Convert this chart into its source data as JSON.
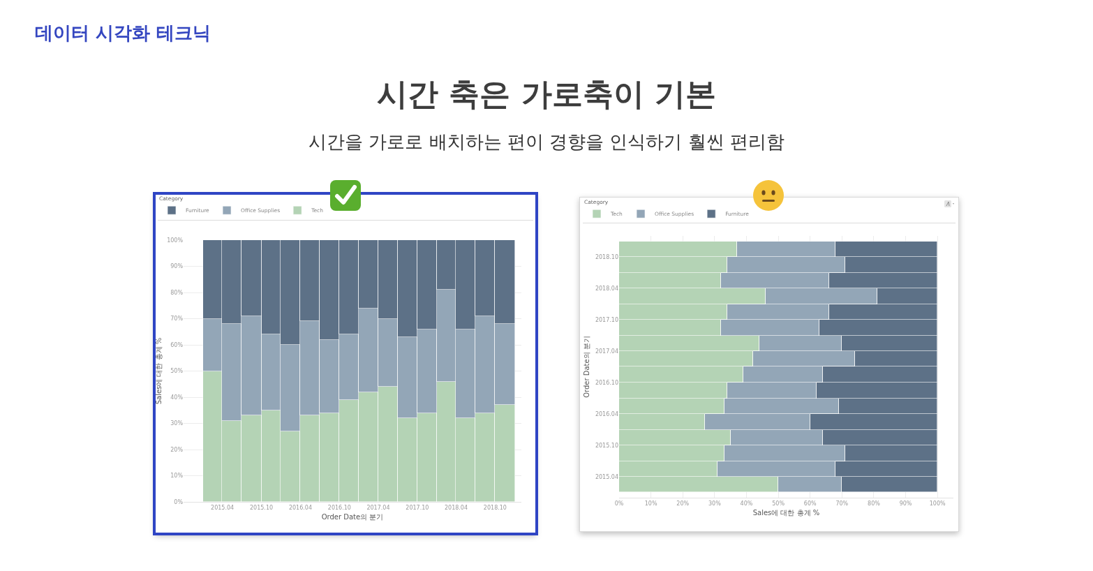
{
  "chart_data": [
    {
      "type": "bar",
      "title": "시간 축은 가로축이 기본",
      "subtitle": "시간을 가로로 배치하는 편이 경향을 인식하기 훨씬 편리함",
      "annotations": [
        "데이터 시각화 테크닉"
      ],
      "xlabel": "Order Date의 분기",
      "ylabel": "Sales에 대한 총계 %",
      "legend_title": "Category",
      "legend": "top left",
      "stacked": true,
      "grid": "y",
      "x": [
        "2015-02-15",
        "2015-05-16",
        "2015-08-16",
        "2015-11-16",
        "2016-02-15",
        "2016-05-16",
        "2016-08-16",
        "2016-11-16",
        "2017-02-15",
        "2017-05-16",
        "2017-08-16",
        "2017-11-16",
        "2018-02-15",
        "2018-05-16",
        "2018-08-16",
        "2018-11-16"
      ],
      "series": [
        {
          "name": "Tech",
          "color": "#b4d3b5",
          "values": [
            50,
            31,
            33,
            35,
            27,
            33,
            34,
            39,
            42,
            44,
            32,
            34,
            46,
            32,
            34,
            37
          ]
        },
        {
          "name": "Office Supplies",
          "color": "#93a6b7",
          "values": [
            20,
            37,
            38,
            29,
            33,
            36,
            28,
            25,
            32,
            26,
            31,
            32,
            35,
            34,
            37,
            31
          ]
        },
        {
          "name": "Furniture",
          "color": "#5d7187",
          "values": [
            30,
            32,
            29,
            36,
            40,
            31,
            38,
            36,
            26,
            30,
            37,
            34,
            19,
            34,
            29,
            32
          ]
        }
      ],
      "xlim": [
        "2014-10",
        "2019-02"
      ],
      "xticks": [
        {
          "value": "2015-04",
          "label": "2015.04"
        },
        {
          "value": "2015-10",
          "label": "2015.10"
        },
        {
          "value": "2016-04",
          "label": "2016.04"
        },
        {
          "value": "2016-10",
          "label": "2016.10"
        },
        {
          "value": "2017-04",
          "label": "2017.04"
        },
        {
          "value": "2017-10",
          "label": "2017.10"
        },
        {
          "value": "2018-04",
          "label": "2018.04"
        },
        {
          "value": "2018-10",
          "label": "2018.10"
        }
      ],
      "ylim": [
        0,
        100
      ],
      "yticks": [
        {
          "value": 0,
          "label": "0%"
        },
        {
          "value": 10,
          "label": "10%"
        },
        {
          "value": 20,
          "label": "20%"
        },
        {
          "value": 30,
          "label": "30%"
        },
        {
          "value": 40,
          "label": "40%"
        },
        {
          "value": 50,
          "label": "50%"
        },
        {
          "value": 60,
          "label": "60%"
        },
        {
          "value": 70,
          "label": "70%"
        },
        {
          "value": 80,
          "label": "80%"
        },
        {
          "value": 90,
          "label": "90%"
        },
        {
          "value": 100,
          "label": "100%"
        }
      ]
    },
    {
      "type": "bar",
      "orientation": "horizontal",
      "xlabel": "Sales에 대한 총계 %",
      "ylabel": "Order Date의 분기",
      "legend_title": "Category",
      "legend": "top left",
      "stacked": true,
      "grid": "x",
      "x": [
        "2015-02-15",
        "2015-05-16",
        "2015-08-16",
        "2015-11-16",
        "2016-02-15",
        "2016-05-16",
        "2016-08-16",
        "2016-11-16",
        "2017-02-15",
        "2017-05-16",
        "2017-08-16",
        "2017-11-16",
        "2018-02-15",
        "2018-05-16",
        "2018-08-16",
        "2018-11-16"
      ],
      "series": [
        {
          "name": "Tech",
          "color": "#b4d3b5",
          "values": [
            50,
            31,
            33,
            35,
            27,
            33,
            34,
            39,
            42,
            44,
            32,
            34,
            46,
            32,
            34,
            37
          ]
        },
        {
          "name": "Office Supplies",
          "color": "#93a6b7",
          "values": [
            20,
            37,
            38,
            29,
            33,
            36,
            28,
            25,
            32,
            26,
            31,
            32,
            35,
            34,
            37,
            31
          ]
        },
        {
          "name": "Furniture",
          "color": "#5d7187",
          "values": [
            30,
            32,
            29,
            36,
            40,
            31,
            38,
            36,
            26,
            30,
            37,
            34,
            19,
            34,
            29,
            32
          ]
        }
      ],
      "xlim": [
        0,
        105
      ],
      "xticks": [
        {
          "value": 0,
          "label": "0%"
        },
        {
          "value": 10,
          "label": "10%"
        },
        {
          "value": 20,
          "label": "20%"
        },
        {
          "value": 30,
          "label": "30%"
        },
        {
          "value": 40,
          "label": "40%"
        },
        {
          "value": 50,
          "label": "50%"
        },
        {
          "value": 60,
          "label": "60%"
        },
        {
          "value": 70,
          "label": "70%"
        },
        {
          "value": 80,
          "label": "80%"
        },
        {
          "value": 90,
          "label": "90%"
        },
        {
          "value": 100,
          "label": "100%"
        }
      ],
      "ylim": [
        "2014-12",
        "2019-02"
      ],
      "yticks": [
        {
          "value": "2015-04",
          "label": "2015.04"
        },
        {
          "value": "2015-10",
          "label": "2015.10"
        },
        {
          "value": "2016-04",
          "label": "2016.04"
        },
        {
          "value": "2016-10",
          "label": "2016.10"
        },
        {
          "value": "2017-04",
          "label": "2017.04"
        },
        {
          "value": "2017-10",
          "label": "2017.10"
        },
        {
          "value": "2018-04",
          "label": "2018.04"
        },
        {
          "value": "2018-10",
          "label": "2018.10"
        }
      ]
    }
  ]
}
